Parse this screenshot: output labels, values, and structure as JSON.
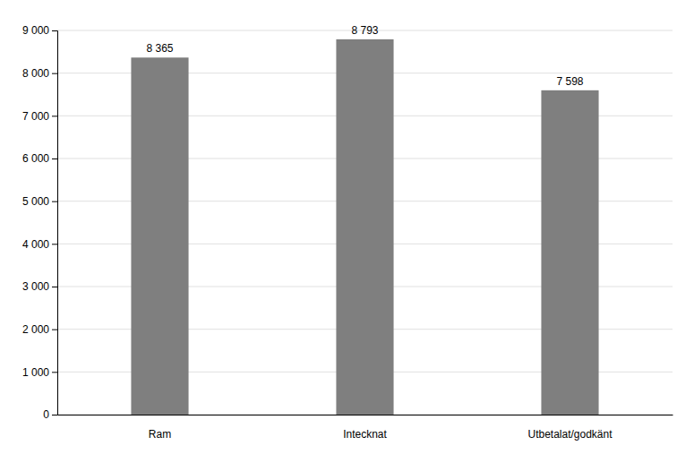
{
  "chart_data": {
    "type": "bar",
    "categories": [
      "Ram",
      "Intecknat",
      "Utbetalat/godkänt"
    ],
    "values": [
      8365,
      8793,
      7598
    ],
    "value_labels": [
      "8 365",
      "8 793",
      "7 598"
    ],
    "data_labels": true,
    "color": "#7f7f7f",
    "ylim": [
      0,
      9000
    ],
    "yticks": [
      0,
      {
        "value": 1000,
        "label": "1 000"
      },
      {
        "value": 2000,
        "label": "2 000"
      },
      {
        "value": 3000,
        "label": "3 000"
      },
      {
        "value": 4000,
        "label": "4 000"
      },
      {
        "value": 5000,
        "label": "5 000"
      },
      {
        "value": 6000,
        "label": "6 000"
      },
      {
        "value": 7000,
        "label": "7 000"
      },
      {
        "value": 8000,
        "label": "8 000"
      },
      {
        "value": 9000,
        "label": "9 000"
      }
    ],
    "grid": true
  }
}
